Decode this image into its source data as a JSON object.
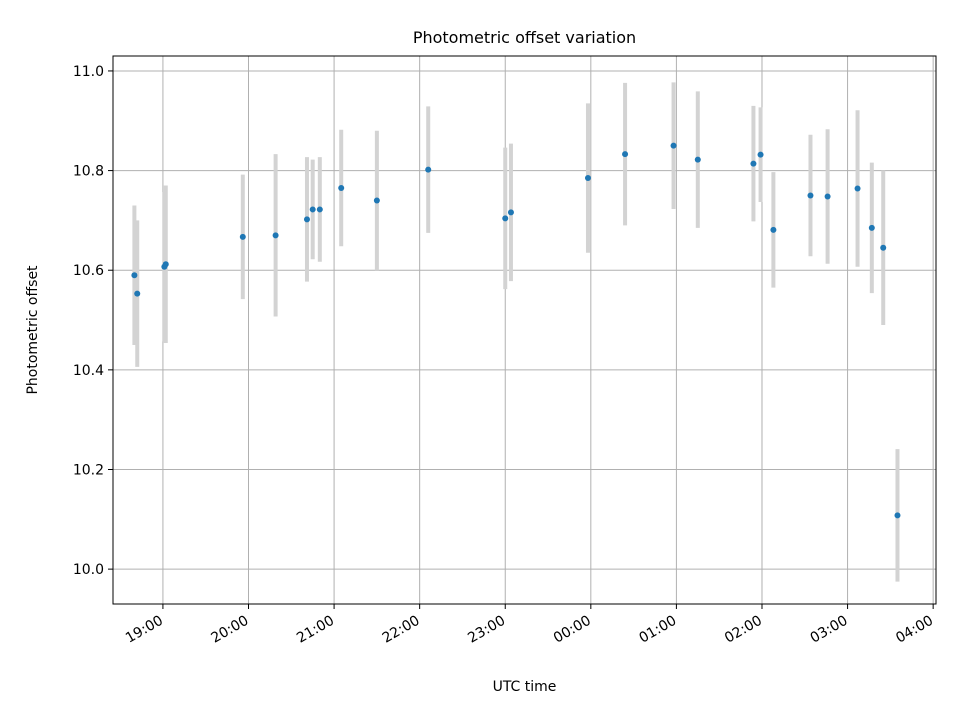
{
  "chart_data": {
    "type": "scatter",
    "title": "Photometric offset variation",
    "xlabel": "UTC time",
    "ylabel": "Photometric offset",
    "grid": true,
    "x_unit": "time of day (hours after 18:00 UTC)",
    "xlim": [
      "18:25",
      "04:02"
    ],
    "ylim": [
      9.93,
      11.03
    ],
    "xticks": [
      "19:00",
      "20:00",
      "21:00",
      "22:00",
      "23:00",
      "00:00",
      "01:00",
      "02:00",
      "03:00",
      "04:00"
    ],
    "yticks": [
      "10.0",
      "10.2",
      "10.4",
      "10.6",
      "10.8",
      "11.0"
    ],
    "marker_color": "#1f77b4",
    "errorbar_color": "#d3d3d3",
    "points": [
      {
        "time": "18:40",
        "y": 10.59,
        "err": 0.14
      },
      {
        "time": "18:42",
        "y": 10.553,
        "err": 0.147
      },
      {
        "time": "19:01",
        "y": 10.607,
        "err": 0.15
      },
      {
        "time": "19:02",
        "y": 10.612,
        "err": 0.158
      },
      {
        "time": "19:56",
        "y": 10.667,
        "err": 0.125
      },
      {
        "time": "20:19",
        "y": 10.67,
        "err": 0.163
      },
      {
        "time": "20:41",
        "y": 10.702,
        "err": 0.125
      },
      {
        "time": "20:45",
        "y": 10.722,
        "err": 0.1
      },
      {
        "time": "20:50",
        "y": 10.722,
        "err": 0.105
      },
      {
        "time": "21:05",
        "y": 10.765,
        "err": 0.117
      },
      {
        "time": "21:30",
        "y": 10.74,
        "err": 0.14
      },
      {
        "time": "22:06",
        "y": 10.802,
        "err": 0.127
      },
      {
        "time": "23:00",
        "y": 10.704,
        "err": 0.142
      },
      {
        "time": "23:04",
        "y": 10.716,
        "err": 0.138
      },
      {
        "time": "23:58",
        "y": 10.785,
        "err": 0.15
      },
      {
        "time": "00:24",
        "y": 10.833,
        "err": 0.143
      },
      {
        "time": "00:58",
        "y": 10.85,
        "err": 0.127
      },
      {
        "time": "01:15",
        "y": 10.822,
        "err": 0.137
      },
      {
        "time": "01:54",
        "y": 10.814,
        "err": 0.116
      },
      {
        "time": "01:59",
        "y": 10.832,
        "err": 0.095
      },
      {
        "time": "02:08",
        "y": 10.681,
        "err": 0.116
      },
      {
        "time": "02:34",
        "y": 10.75,
        "err": 0.122
      },
      {
        "time": "02:46",
        "y": 10.748,
        "err": 0.135
      },
      {
        "time": "03:07",
        "y": 10.764,
        "err": 0.157
      },
      {
        "time": "03:17",
        "y": 10.685,
        "err": 0.131
      },
      {
        "time": "03:25",
        "y": 10.645,
        "err": 0.155
      },
      {
        "time": "03:35",
        "y": 10.108,
        "err": 0.133
      }
    ]
  }
}
